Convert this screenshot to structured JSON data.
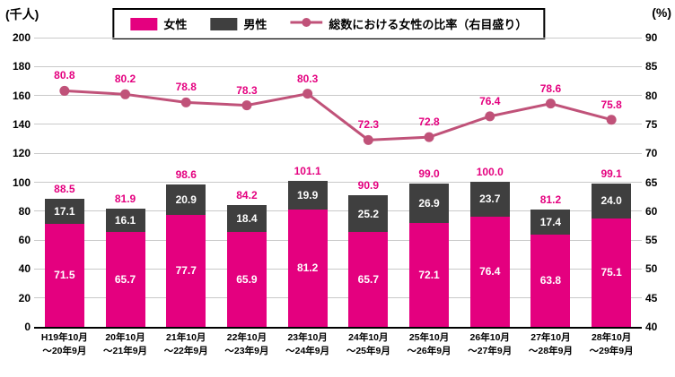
{
  "axes": {
    "left_unit": "(千人)",
    "right_unit": "(%)"
  },
  "legend": {
    "items": [
      {
        "label": "女性"
      },
      {
        "label": "男性"
      },
      {
        "label": "総数における女性の比率（右目盛り）"
      }
    ]
  },
  "colors": {
    "female": "#e4007f",
    "male": "#3f3f3f",
    "line": "#c05279",
    "value_label": "#e4007f",
    "grid": "#c9c9c9",
    "axis": "#000000"
  },
  "chart_data": {
    "type": "bar",
    "subtype": "stacked-bar-with-line",
    "categories": [
      [
        "H19年10月",
        "～20年9月"
      ],
      [
        "20年10月",
        "～21年9月"
      ],
      [
        "21年10月",
        "～22年9月"
      ],
      [
        "22年10月",
        "～23年9月"
      ],
      [
        "23年10月",
        "～24年9月"
      ],
      [
        "24年10月",
        "～25年9月"
      ],
      [
        "25年10月",
        "～26年9月"
      ],
      [
        "26年10月",
        "～27年9月"
      ],
      [
        "27年10月",
        "～28年9月"
      ],
      [
        "28年10月",
        "～29年9月"
      ]
    ],
    "series": [
      {
        "name": "女性",
        "type": "bar",
        "axis": "left",
        "values": [
          71.5,
          65.7,
          77.7,
          65.9,
          81.2,
          65.7,
          72.1,
          76.4,
          63.8,
          75.1
        ]
      },
      {
        "name": "男性",
        "type": "bar",
        "axis": "left",
        "values": [
          17.1,
          16.1,
          20.9,
          18.4,
          19.9,
          25.2,
          26.9,
          23.7,
          17.4,
          24.0
        ]
      },
      {
        "name": "総数における女性の比率（右目盛り）",
        "type": "line",
        "axis": "right",
        "values": [
          80.8,
          80.2,
          78.8,
          78.3,
          80.3,
          72.3,
          72.8,
          76.4,
          78.6,
          75.8
        ]
      }
    ],
    "totals": [
      88.5,
      81.9,
      98.6,
      84.2,
      101.1,
      90.9,
      99.0,
      100.0,
      81.2,
      99.1
    ],
    "left_axis": {
      "label": "(千人)",
      "min": 0,
      "max": 200,
      "step": 20,
      "ticks": [
        0,
        20,
        40,
        60,
        80,
        100,
        120,
        140,
        160,
        180,
        200
      ]
    },
    "right_axis": {
      "label": "(%)",
      "min": 40,
      "max": 90,
      "step": 5,
      "ticks": [
        40,
        45,
        50,
        55,
        60,
        65,
        70,
        75,
        80,
        85,
        90
      ]
    },
    "grid": true,
    "legend_position": "top-center"
  }
}
